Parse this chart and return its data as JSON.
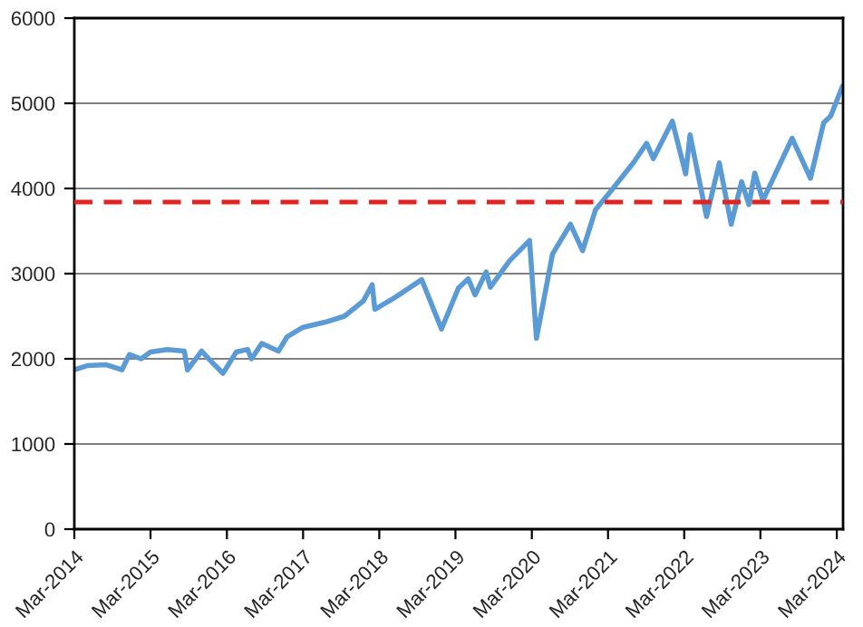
{
  "chart_data": {
    "type": "line",
    "x": [
      "2014-03-01",
      "2014-05-01",
      "2014-08-01",
      "2014-10-15",
      "2014-11-20",
      "2015-01-15",
      "2015-03-01",
      "2015-05-20",
      "2015-08-10",
      "2015-08-25",
      "2015-11-01",
      "2016-01-01",
      "2016-02-11",
      "2016-04-15",
      "2016-06-08",
      "2016-06-27",
      "2016-08-15",
      "2016-11-03",
      "2016-12-15",
      "2017-03-01",
      "2017-06-15",
      "2017-09-15",
      "2017-12-15",
      "2018-01-26",
      "2018-02-08",
      "2018-05-15",
      "2018-09-20",
      "2018-12-24",
      "2019-03-15",
      "2019-05-01",
      "2019-06-03",
      "2019-07-26",
      "2019-08-15",
      "2019-11-15",
      "2020-02-19",
      "2020-03-23",
      "2020-06-08",
      "2020-09-02",
      "2020-10-30",
      "2020-12-31",
      "2021-03-15",
      "2021-06-30",
      "2021-09-02",
      "2021-10-04",
      "2022-01-03",
      "2022-03-08",
      "2022-03-29",
      "2022-06-16",
      "2022-08-16",
      "2022-10-12",
      "2022-12-01",
      "2023-01-05",
      "2023-02-02",
      "2023-03-13",
      "2023-07-31",
      "2023-10-27",
      "2023-12-29",
      "2024-02-01",
      "2024-03-28"
    ],
    "series": [
      {
        "color": "#5b9bd5",
        "values": [
          1870,
          1920,
          1930,
          1870,
          2050,
          2000,
          2080,
          2110,
          2090,
          1870,
          2090,
          1930,
          1830,
          2080,
          2110,
          2000,
          2180,
          2090,
          2260,
          2370,
          2430,
          2500,
          2680,
          2870,
          2580,
          2720,
          2930,
          2350,
          2830,
          2940,
          2750,
          3020,
          2840,
          3150,
          3390,
          2240,
          3230,
          3580,
          3270,
          3750,
          3970,
          4300,
          4530,
          4350,
          4790,
          4170,
          4630,
          3670,
          4300,
          3580,
          4080,
          3810,
          4180,
          3860,
          4590,
          4120,
          4770,
          4850,
          5200
        ]
      }
    ],
    "ylim": [
      0,
      6000
    ],
    "yticks": [
      0,
      1000,
      2000,
      3000,
      4000,
      5000,
      6000
    ],
    "xlim": [
      "2014-03-01",
      "2024-03-31"
    ],
    "xticks": [
      {
        "value": "2014-03-01",
        "label": "Mar-2014"
      },
      {
        "value": "2015-03-01",
        "label": "Mar-2015"
      },
      {
        "value": "2016-03-01",
        "label": "Mar-2016"
      },
      {
        "value": "2017-03-01",
        "label": "Mar-2017"
      },
      {
        "value": "2018-03-01",
        "label": "Mar-2018"
      },
      {
        "value": "2019-03-01",
        "label": "Mar-2019"
      },
      {
        "value": "2020-03-01",
        "label": "Mar-2020"
      },
      {
        "value": "2021-03-01",
        "label": "Mar-2021"
      },
      {
        "value": "2022-03-01",
        "label": "Mar-2022"
      },
      {
        "value": "2023-03-01",
        "label": "Mar-2023"
      },
      {
        "value": "2024-03-01",
        "label": "Mar-2024"
      }
    ],
    "ref_lines": [
      {
        "axis": "y",
        "value": 3840,
        "color": "#e3231f",
        "line_style": "dashed"
      }
    ],
    "grid": "y",
    "marker": "none",
    "line_style": "solid"
  }
}
